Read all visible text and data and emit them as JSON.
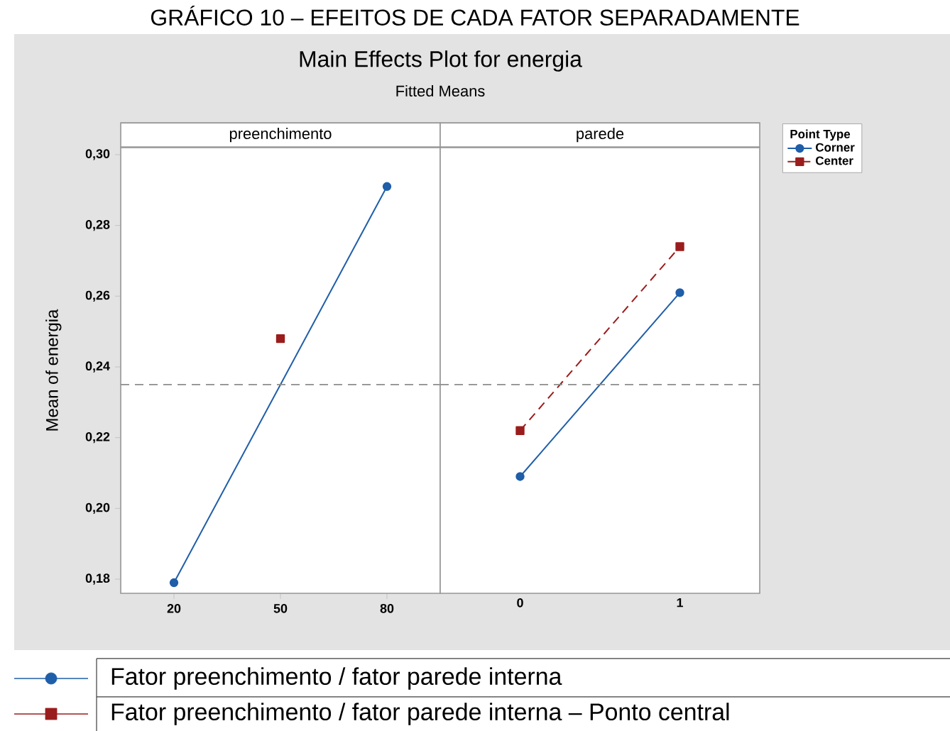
{
  "chart_data": [
    {
      "type": "line",
      "title": "Main Effects Plot for energia",
      "subtitle": "Fitted Means",
      "xlabel": "preenchimento",
      "ylabel": "Mean of energia",
      "annotations": [
        "GRÁFICO 10 – EFEITOS DE CADA FATOR SEPARADAMENTE"
      ],
      "categories": [
        "20",
        "50",
        "80"
      ],
      "series": [
        {
          "color": "#1f5ea8",
          "marker": "circle",
          "line_style": "solid",
          "values": [
            0.179,
            null,
            0.291
          ]
        },
        {
          "color": "#9b1c1c",
          "marker": "square",
          "values": [
            null,
            0.248,
            null
          ]
        }
      ],
      "ylim": [
        0.176,
        0.302
      ],
      "yticks": [
        {
          "value": 0.18,
          "label": "0,18"
        },
        {
          "value": 0.2,
          "label": "0,20"
        },
        {
          "value": 0.22,
          "label": "0,22"
        },
        {
          "value": 0.24,
          "label": "0,24"
        },
        {
          "value": 0.26,
          "label": "0,26"
        },
        {
          "value": 0.28,
          "label": "0,28"
        },
        {
          "value": 0.3,
          "label": "0,30"
        }
      ],
      "ref_lines": [
        {
          "axis": "y",
          "value": 0.235,
          "color": "#8c8c8c",
          "line_style": "dashed"
        }
      ],
      "grid": false,
      "legend": false
    },
    {
      "type": "line",
      "xlabel": "parede",
      "legend_title": "Point Type",
      "annotations": [
        "Fator preenchimento / fator parede interna",
        "Fator preenchimento / fator parede interna – Ponto central"
      ],
      "categories": [
        "0",
        "1"
      ],
      "series": [
        {
          "name": "Corner",
          "color": "#1f5ea8",
          "marker": "circle",
          "line_style": "solid",
          "values": [
            0.209,
            0.261
          ]
        },
        {
          "name": "Center",
          "color": "#9b1c1c",
          "marker": "square",
          "line_style": "dashed",
          "values": [
            0.222,
            0.274
          ]
        }
      ],
      "ylim": [
        0.176,
        0.302
      ],
      "ref_lines": [
        {
          "axis": "y",
          "value": 0.235,
          "color": "#8c8c8c",
          "line_style": "dashed"
        }
      ],
      "tick_labels": "x",
      "grid": false,
      "legend": "top right"
    }
  ]
}
